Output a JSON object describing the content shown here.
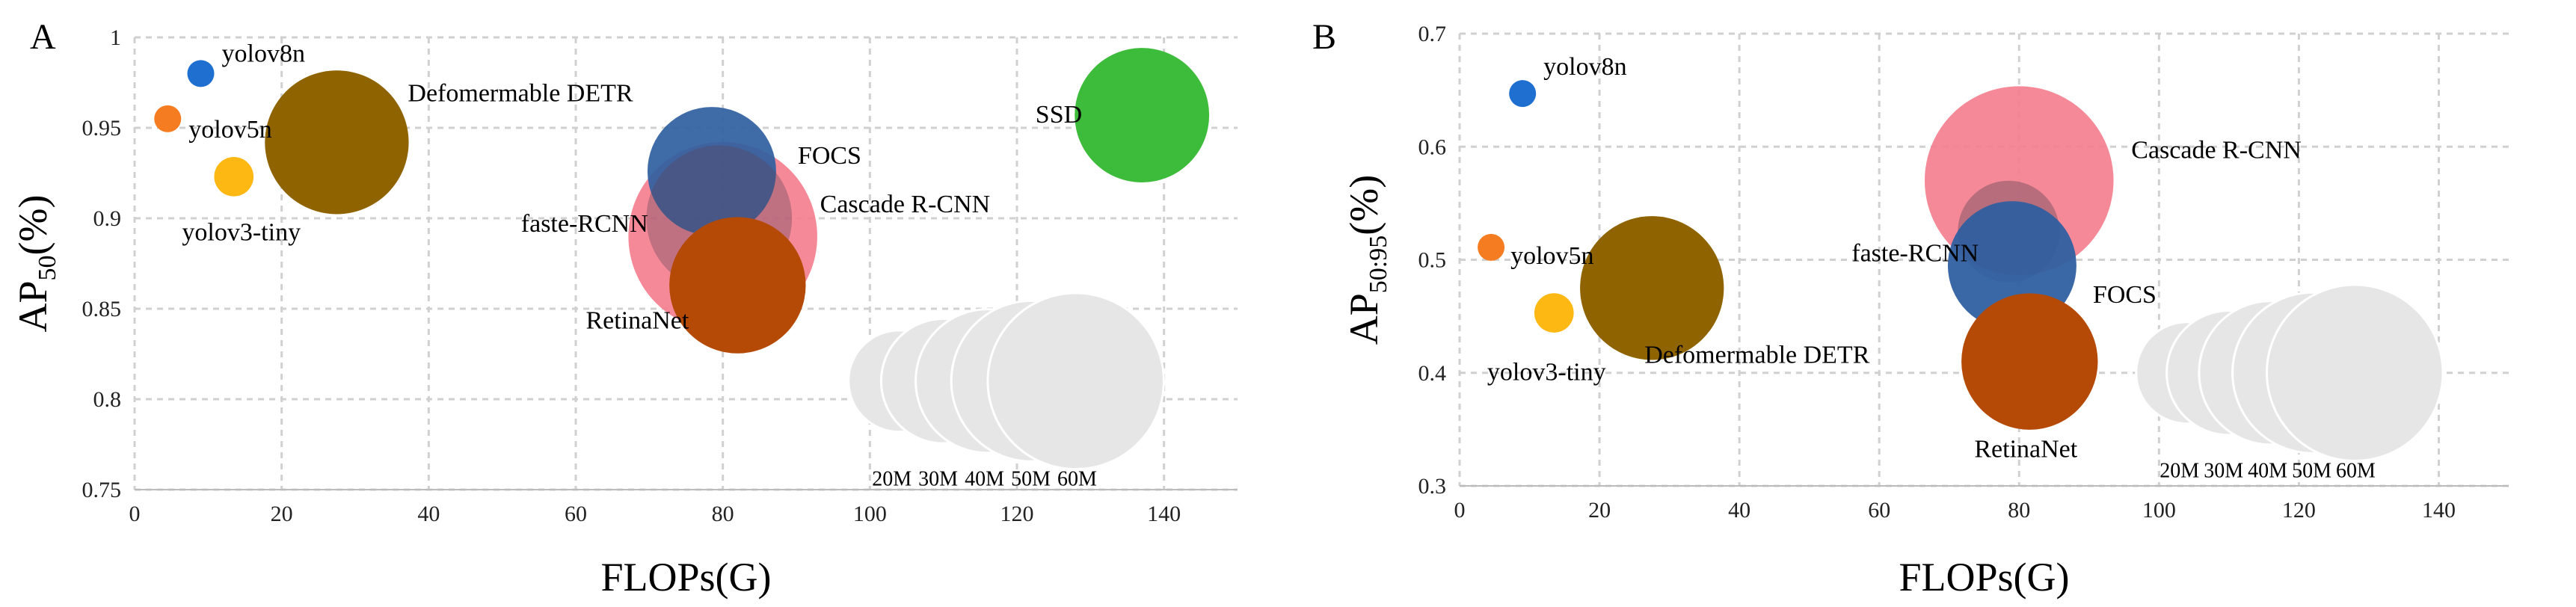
{
  "chart_data": [
    {
      "type": "scatter",
      "panel": "A",
      "xlabel": "FLOPs(G)",
      "ylabel": {
        "base": "AP",
        "sub": "50",
        "suffix": "(%)"
      },
      "xlim": [
        0,
        150
      ],
      "ylim": [
        0.75,
        1.0
      ],
      "x_ticks": [
        "0",
        "20",
        "40",
        "60",
        "80",
        "100",
        "120",
        "140"
      ],
      "y_ticks": [
        "0.75",
        "0.8",
        "0.85",
        "0.9",
        "0.95",
        "1"
      ],
      "grid": true,
      "points": [
        {
          "name": "Cascade R-CNN",
          "label": "Cascade R-CNN",
          "x": 80,
          "y": 0.89,
          "size": 69,
          "color": "#f47c8c",
          "opacity": 0.9,
          "label_pos": "right"
        },
        {
          "name": "FOCS",
          "label": "FOCS",
          "x": 78.5,
          "y": 0.926,
          "size": 32,
          "color": "#2f5fa0",
          "opacity": 0.92,
          "label_pos": "right"
        },
        {
          "name": "faste-RCNN",
          "label": "faste-RCNN",
          "x": 79.5,
          "y": 0.9,
          "size": 41,
          "color": "#5d4358",
          "opacity": 0.35,
          "label_pos": "left"
        },
        {
          "name": "RetinaNet",
          "label": "RetinaNet",
          "x": 82,
          "y": 0.863,
          "size": 36,
          "color": "#b54a07",
          "opacity": 1.0,
          "label_pos": "left"
        },
        {
          "name": "Defomermable DETR",
          "label": "Defomermable DETR",
          "x": 27.5,
          "y": 0.942,
          "size": 40,
          "color": "#8f6400",
          "opacity": 1.0,
          "label_pos": "right-up"
        },
        {
          "name": "yolov3-tiny",
          "label": "yolov3-tiny",
          "x": 13.5,
          "y": 0.923,
          "size": 3,
          "color": "#fdb813",
          "opacity": 1.0,
          "label_pos": "below"
        },
        {
          "name": "yolov8n",
          "label": "yolov8n",
          "x": 9,
          "y": 0.98,
          "size": 0.5,
          "color": "#1f6fd1",
          "opacity": 1.0,
          "label_pos": "right-up"
        },
        {
          "name": "yolov5n",
          "label": "yolov5n",
          "x": 4.5,
          "y": 0.955,
          "size": 0.2,
          "color": "#f57c20",
          "opacity": 1.0,
          "label_pos": "right-down"
        },
        {
          "name": "SSD",
          "label": "SSD",
          "x": 137,
          "y": 0.957,
          "size": 35,
          "color": "#3dbb3a",
          "opacity": 1.0,
          "label_pos": "left"
        }
      ],
      "size_legend": {
        "y": 0.81,
        "color": "#e6e6e6",
        "items": [
          {
            "label": "20M",
            "x": 104,
            "size": 20
          },
          {
            "label": "30M",
            "x": 110,
            "size": 30
          },
          {
            "label": "40M",
            "x": 116,
            "size": 40
          },
          {
            "label": "50M",
            "x": 122,
            "size": 50
          },
          {
            "label": "60M",
            "x": 128,
            "size": 60
          }
        ]
      }
    },
    {
      "type": "scatter",
      "panel": "B",
      "xlabel": "FLOPs(G)",
      "ylabel": {
        "base": "AP",
        "sub": "50:95",
        "suffix": "(%)"
      },
      "xlim": [
        0,
        150
      ],
      "ylim": [
        0.3,
        0.7
      ],
      "x_ticks": [
        "0",
        "20",
        "40",
        "60",
        "80",
        "100",
        "120",
        "140"
      ],
      "y_ticks": [
        "0.3",
        "0.4",
        "0.5",
        "0.6",
        "0.7"
      ],
      "grid": true,
      "points": [
        {
          "name": "Cascade R-CNN",
          "label": "Cascade R-CNN",
          "x": 80,
          "y": 0.57,
          "size": 69,
          "color": "#f47c8c",
          "opacity": 0.9,
          "label_pos": "right-up"
        },
        {
          "name": "faste-RCNN",
          "label": "faste-RCNN",
          "x": 78.5,
          "y": 0.525,
          "size": 20,
          "color": "#5d4358",
          "opacity": 0.4,
          "label_pos": "left"
        },
        {
          "name": "FOCS",
          "label": "FOCS",
          "x": 79,
          "y": 0.495,
          "size": 32,
          "color": "#2f5fa0",
          "opacity": 0.95,
          "label_pos": "right-down"
        },
        {
          "name": "RetinaNet",
          "label": "RetinaNet",
          "x": 81.5,
          "y": 0.41,
          "size": 36,
          "color": "#b54a07",
          "opacity": 1.0,
          "label_pos": "below"
        },
        {
          "name": "Defomermable DETR",
          "label": "Defomermable DETR",
          "x": 27.5,
          "y": 0.475,
          "size": 40,
          "color": "#8f6400",
          "opacity": 1.0,
          "label_pos": "right-down"
        },
        {
          "name": "yolov3-tiny",
          "label": "yolov3-tiny",
          "x": 13.5,
          "y": 0.453,
          "size": 3,
          "color": "#fdb813",
          "opacity": 1.0,
          "label_pos": "below"
        },
        {
          "name": "yolov8n",
          "label": "yolov8n",
          "x": 9,
          "y": 0.647,
          "size": 0.5,
          "color": "#1f6fd1",
          "opacity": 1.0,
          "label_pos": "right-up"
        },
        {
          "name": "yolov5n",
          "label": "yolov5n",
          "x": 4.5,
          "y": 0.511,
          "size": 0.2,
          "color": "#f57c20",
          "opacity": 1.0,
          "label_pos": "right-down"
        }
      ],
      "size_legend": {
        "y": 0.4,
        "color": "#e6e6e6",
        "items": [
          {
            "label": "20M",
            "x": 104,
            "size": 20
          },
          {
            "label": "30M",
            "x": 110,
            "size": 30
          },
          {
            "label": "40M",
            "x": 116,
            "size": 40
          },
          {
            "label": "50M",
            "x": 122,
            "size": 50
          },
          {
            "label": "60M",
            "x": 128,
            "size": 60
          }
        ]
      }
    }
  ]
}
